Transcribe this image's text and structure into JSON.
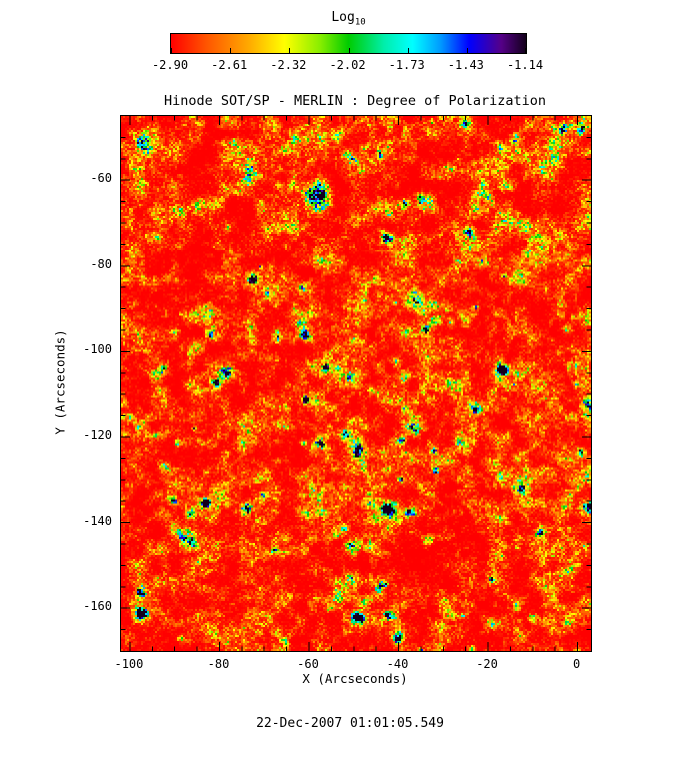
{
  "chart_data": {
    "type": "heatmap",
    "title": "Hinode SOT/SP - MERLIN : Degree of Polarization",
    "xlabel": "X (Arcseconds)",
    "ylabel": "Y (Arcseconds)",
    "xlim": [
      -102,
      3
    ],
    "ylim": [
      -170,
      -45
    ],
    "xticks": [
      -100,
      -80,
      -60,
      -40,
      -20,
      0
    ],
    "yticks": [
      -60,
      -80,
      -100,
      -120,
      -140,
      -160
    ],
    "minor_tick_step": 5,
    "grid": false,
    "colorbar": {
      "label": "Log",
      "subscript": "10",
      "tick_labels": [
        "-2.90",
        "-2.61",
        "-2.32",
        "-2.02",
        "-1.73",
        "-1.43",
        "-1.14"
      ],
      "value_range": [
        -2.9,
        -1.14
      ],
      "position": "top"
    },
    "colormap_stops": [
      [
        0.0,
        "#ff0000"
      ],
      [
        0.1,
        "#ff5500"
      ],
      [
        0.22,
        "#ffaa00"
      ],
      [
        0.32,
        "#ffff00"
      ],
      [
        0.42,
        "#88ee00"
      ],
      [
        0.5,
        "#00cc00"
      ],
      [
        0.6,
        "#00eeaa"
      ],
      [
        0.68,
        "#00ffff"
      ],
      [
        0.76,
        "#0099ff"
      ],
      [
        0.84,
        "#0000ff"
      ],
      [
        0.93,
        "#550088"
      ],
      [
        1.0,
        "#12001a"
      ]
    ],
    "description": "Speckled solar degree-of-polarization map: field dominated by low values near -2.9 (red/orange) with scattered yellow-green mottling and sparse cyan/blue patches reaching about -1.4",
    "noise_seed": 20071222
  },
  "footer": {
    "timestamp": "22-Dec-2007 01:01:05.549"
  }
}
